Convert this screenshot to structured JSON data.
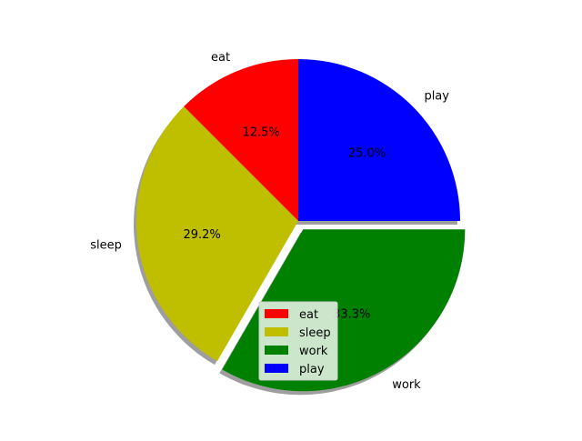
{
  "chart_data": {
    "type": "pie",
    "title": "",
    "slices": [
      {
        "label": "eat",
        "value": 3,
        "percent": "12.5%",
        "color": "#ff0000",
        "explode": false
      },
      {
        "label": "sleep",
        "value": 7,
        "percent": "29.2%",
        "color": "#bfbf00",
        "explode": false
      },
      {
        "label": "work",
        "value": 8,
        "percent": "33.3%",
        "color": "#008000",
        "explode": true
      },
      {
        "label": "play",
        "value": 6,
        "percent": "25.0%",
        "color": "#0000ff",
        "explode": false
      }
    ],
    "start_angle_deg": 90,
    "direction": "counterclockwise",
    "shadow": true,
    "legend": {
      "placement": "lower-center",
      "entries": [
        "eat",
        "sleep",
        "work",
        "play"
      ]
    }
  }
}
